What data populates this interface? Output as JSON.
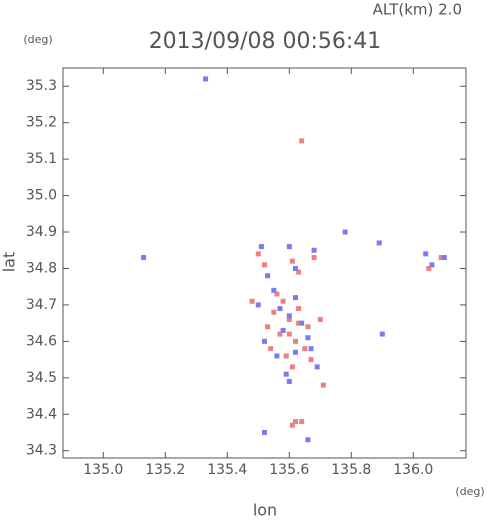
{
  "chart_data": {
    "type": "scatter",
    "header": "ALT(km)  2.0",
    "title": "2013/09/08 00:56:41",
    "ylabel_unit": "(deg)",
    "xlabel_unit": "(deg)",
    "xlabel": "lon",
    "ylabel": "lat",
    "xlim": [
      134.87,
      136.17
    ],
    "ylim": [
      34.28,
      35.35
    ],
    "xticks": [
      {
        "value": 135,
        "label": "135.0"
      },
      135.2,
      135.4,
      135.6,
      135.8,
      {
        "value": 136,
        "label": "136.0"
      }
    ],
    "yticks": [
      34.3,
      34.4,
      34.5,
      34.6,
      34.7,
      34.8,
      34.9,
      {
        "value": 35,
        "label": "35.0"
      },
      35.1,
      35.2,
      35.3
    ],
    "series": [
      {
        "color": "#f08080",
        "x": [
          135.64,
          135.5,
          135.52,
          135.61,
          135.63,
          135.68,
          136.09,
          136.05,
          135.55,
          135.58,
          135.6,
          135.63,
          135.66,
          135.53,
          135.57,
          135.62,
          135.65,
          135.59,
          135.61,
          135.67,
          135.71,
          135.62,
          135.61,
          135.64,
          135.54,
          135.7,
          135.56,
          135.6,
          135.63,
          135.48
        ],
        "y": [
          35.15,
          34.84,
          34.81,
          34.82,
          34.79,
          34.83,
          34.83,
          34.8,
          34.68,
          34.71,
          34.66,
          34.69,
          34.64,
          34.64,
          34.62,
          34.6,
          34.58,
          34.56,
          34.53,
          34.55,
          34.48,
          34.38,
          34.37,
          34.38,
          34.58,
          34.66,
          34.73,
          34.62,
          34.65,
          34.71
        ]
      },
      {
        "color": "#7b7bf0",
        "x": [
          135.33,
          135.13,
          135.51,
          135.53,
          135.6,
          135.62,
          135.68,
          135.78,
          135.89,
          136.04,
          136.06,
          136.1,
          135.55,
          135.57,
          135.6,
          135.64,
          135.66,
          135.52,
          135.58,
          135.62,
          135.67,
          135.59,
          135.6,
          135.69,
          135.52,
          135.66,
          135.9,
          135.5,
          135.62,
          135.56
        ],
        "y": [
          35.32,
          34.83,
          34.86,
          34.78,
          34.86,
          34.8,
          34.85,
          34.9,
          34.87,
          34.84,
          34.81,
          34.83,
          34.74,
          34.69,
          34.67,
          34.65,
          34.61,
          34.6,
          34.63,
          34.57,
          34.58,
          34.51,
          34.49,
          34.53,
          34.35,
          34.33,
          34.62,
          34.7,
          34.72,
          34.56
        ]
      }
    ]
  }
}
